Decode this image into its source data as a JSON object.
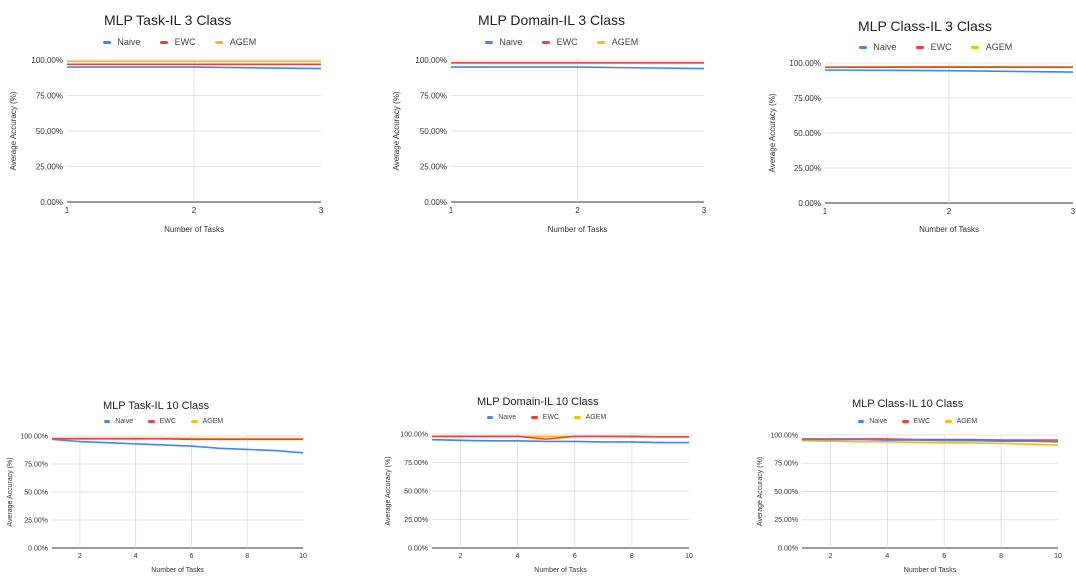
{
  "chart_data": [
    {
      "type": "line",
      "title": "MLP Task-IL 3 Class",
      "xlabel": "Number of Tasks",
      "ylabel": "Average Accuracy (%)",
      "x": [
        1,
        2,
        3
      ],
      "x_ticks": [
        "1",
        "2",
        "3"
      ],
      "y_ticks": [
        "0.00%",
        "25.00%",
        "50.00%",
        "75.00%",
        "100.00%"
      ],
      "ylim": [
        0,
        100
      ],
      "legend_position": "top",
      "grid": true,
      "series": [
        {
          "name": "Naive",
          "color": "#4285F4",
          "values": [
            95,
            95,
            94
          ]
        },
        {
          "name": "EWC",
          "color": "#EA4335",
          "values": [
            97,
            97,
            97
          ]
        },
        {
          "name": "AGEM",
          "color": "#FBBC04",
          "values": [
            99,
            99,
            99
          ]
        }
      ]
    },
    {
      "type": "line",
      "title": "MLP Domain-IL 3 Class",
      "xlabel": "Number of Tasks",
      "ylabel": "Average Accuracy (%)",
      "x": [
        1,
        2,
        3
      ],
      "x_ticks": [
        "1",
        "2",
        "3"
      ],
      "y_ticks": [
        "0.00%",
        "25.00%",
        "50.00%",
        "75.00%",
        "100.00%"
      ],
      "ylim": [
        0,
        100
      ],
      "legend_position": "top",
      "grid": true,
      "series": [
        {
          "name": "Naive",
          "color": "#4285F4",
          "values": [
            95,
            95,
            94
          ]
        },
        {
          "name": "EWC",
          "color": "#EA4335",
          "values": [
            98,
            98,
            98
          ]
        },
        {
          "name": "AGEM",
          "color": "#FBBC04",
          "values": [
            98,
            98,
            98
          ]
        }
      ]
    },
    {
      "type": "line",
      "title": "MLP Class-IL 3 Class",
      "xlabel": "Number of Tasks",
      "ylabel": "Average Accuracy (%)",
      "x": [
        1,
        2,
        3
      ],
      "x_ticks": [
        "1",
        "2",
        "3"
      ],
      "y_ticks": [
        "0.00%",
        "25.00%",
        "50.00%",
        "75.00%",
        "100.00%"
      ],
      "ylim": [
        0,
        100
      ],
      "legend_position": "top",
      "grid": true,
      "series": [
        {
          "name": "Naive",
          "color": "#4285F4",
          "values": [
            95,
            94.5,
            93.5
          ]
        },
        {
          "name": "EWC",
          "color": "#EA4335",
          "values": [
            97,
            97,
            97
          ]
        },
        {
          "name": "AGEM",
          "color": "#FBBC04",
          "values": [
            97,
            97.5,
            97
          ]
        }
      ]
    },
    {
      "type": "line",
      "title": "MLP Task-IL 10 Class",
      "xlabel": "Number of Tasks",
      "ylabel": "Average Accuracy (%)",
      "x": [
        1,
        2,
        3,
        4,
        5,
        6,
        7,
        8,
        9,
        10
      ],
      "x_ticks": [
        "2",
        "4",
        "6",
        "8",
        "10"
      ],
      "y_ticks": [
        "0.00%",
        "25.00%",
        "50.00%",
        "75.00%",
        "100.00%"
      ],
      "ylim": [
        0,
        100
      ],
      "legend_position": "top",
      "grid": true,
      "series": [
        {
          "name": "Naive",
          "color": "#4285F4",
          "values": [
            97,
            95,
            94,
            93,
            92,
            91,
            89,
            88,
            87,
            85
          ]
        },
        {
          "name": "EWC",
          "color": "#EA4335",
          "values": [
            97.5,
            97.5,
            97.5,
            97.5,
            97.5,
            97,
            97,
            97,
            97,
            97
          ]
        },
        {
          "name": "AGEM",
          "color": "#FBBC04",
          "values": [
            98,
            98,
            98,
            98,
            98,
            98,
            97.5,
            97.5,
            97.5,
            97.5
          ]
        }
      ]
    },
    {
      "type": "line",
      "title": "MLP Domain-IL 10 Class",
      "xlabel": "Number of Tasks",
      "ylabel": "Average Accuracy (%)",
      "x": [
        1,
        2,
        3,
        4,
        5,
        6,
        7,
        8,
        9,
        10
      ],
      "x_ticks": [
        "2",
        "4",
        "6",
        "8",
        "10"
      ],
      "y_ticks": [
        "0.00%",
        "25.00%",
        "50.00%",
        "75.00%",
        "100.00%"
      ],
      "ylim": [
        0,
        100
      ],
      "legend_position": "top",
      "grid": true,
      "series": [
        {
          "name": "Naive",
          "color": "#4285F4",
          "values": [
            95,
            94.5,
            94,
            94,
            93.5,
            93.5,
            93,
            93,
            92.5,
            92.5
          ]
        },
        {
          "name": "EWC",
          "color": "#EA4335",
          "values": [
            98,
            98,
            98,
            98,
            95.5,
            98,
            98,
            98,
            97.5,
            97.5
          ]
        },
        {
          "name": "AGEM",
          "color": "#FBBC04",
          "values": [
            98,
            98,
            98,
            98,
            98,
            98,
            98,
            97.5,
            97.5,
            97.5
          ]
        }
      ]
    },
    {
      "type": "line",
      "title": "MLP Class-IL 10 Class",
      "xlabel": "Number of Tasks",
      "ylabel": "Average Accuracy (%)",
      "x": [
        1,
        2,
        3,
        4,
        5,
        6,
        7,
        8,
        9,
        10
      ],
      "x_ticks": [
        "2",
        "4",
        "6",
        "8",
        "10"
      ],
      "y_ticks": [
        "0.00%",
        "25.00%",
        "50.00%",
        "75.00%",
        "100.00%"
      ],
      "ylim": [
        0,
        100
      ],
      "legend_position": "top",
      "grid": true,
      "series": [
        {
          "name": "Naive",
          "color": "#4285F4",
          "values": [
            96,
            96,
            96,
            95.5,
            95.5,
            95,
            95,
            94.5,
            94.5,
            94
          ]
        },
        {
          "name": "EWC",
          "color": "#EA4335",
          "values": [
            96.5,
            96.5,
            96.5,
            96.5,
            96,
            96,
            96,
            95.5,
            95.5,
            95.5
          ]
        },
        {
          "name": "AGEM",
          "color": "#FBBC04",
          "values": [
            95,
            94.5,
            94,
            94,
            93.5,
            93,
            93,
            92.5,
            92,
            91
          ]
        }
      ]
    }
  ]
}
